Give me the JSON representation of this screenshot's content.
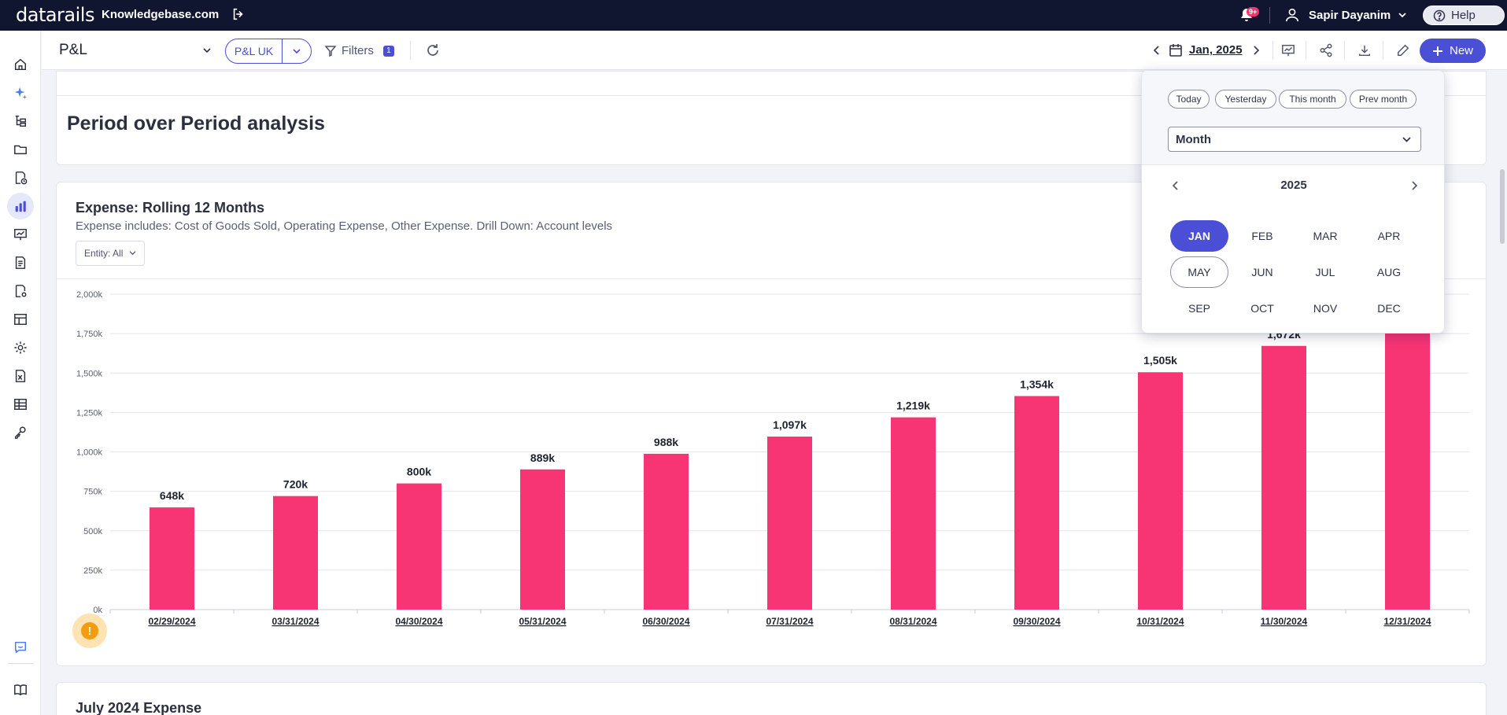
{
  "topbar": {
    "logo": "datarails",
    "workspace": "Knowledgebase.com",
    "notifications_badge": "9+",
    "user_name": "Sapir Dayanim",
    "help_label": "Help"
  },
  "toolbar": {
    "page_title": "P&L",
    "pl_chip": "P&L UK",
    "filters_label": "Filters",
    "filters_count": "1",
    "date_label": "Jan, 2025",
    "new_label": "New"
  },
  "sections": {
    "title": "Period over Period analysis",
    "chart_card_title": "Expense: Rolling 12 Months",
    "chart_card_subtitle": "Expense includes: Cost of Goods Sold, Operating Expense, Other Expense. Drill Down: Account levels",
    "entity_filter": "Entity: All",
    "next_card_title": "July 2024 Expense"
  },
  "date_picker": {
    "chips": [
      "Today",
      "Yesterday",
      "This month",
      "Prev month"
    ],
    "period_type": "Month",
    "year": "2025",
    "months": [
      "JAN",
      "FEB",
      "MAR",
      "APR",
      "MAY",
      "JUN",
      "JUL",
      "AUG",
      "SEP",
      "OCT",
      "NOV",
      "DEC"
    ],
    "selected_month": "JAN",
    "outlined_month": "MAY"
  },
  "colors": {
    "accent": "#4a4fd6",
    "bar": "#f73575",
    "topbar_bg": "#101530"
  },
  "chart_data": {
    "type": "bar",
    "categories": [
      "02/29/2024",
      "03/31/2024",
      "04/30/2024",
      "05/31/2024",
      "06/30/2024",
      "07/31/2024",
      "08/31/2024",
      "09/30/2024",
      "10/31/2024",
      "11/30/2024",
      "12/31/2024"
    ],
    "values": [
      648,
      720,
      800,
      889,
      988,
      1097,
      1219,
      1354,
      1505,
      1672,
      1760
    ],
    "data_labels": [
      "648k",
      "720k",
      "800k",
      "889k",
      "988k",
      "1,097k",
      "1,219k",
      "1,354k",
      "1,505k",
      "1,672k",
      ""
    ],
    "y_ticks": [
      "0k",
      "250k",
      "500k",
      "750k",
      "1,000k",
      "1,250k",
      "1,500k",
      "1,750k",
      "2,000k"
    ],
    "ylim": [
      0,
      2000
    ],
    "grid": true
  }
}
